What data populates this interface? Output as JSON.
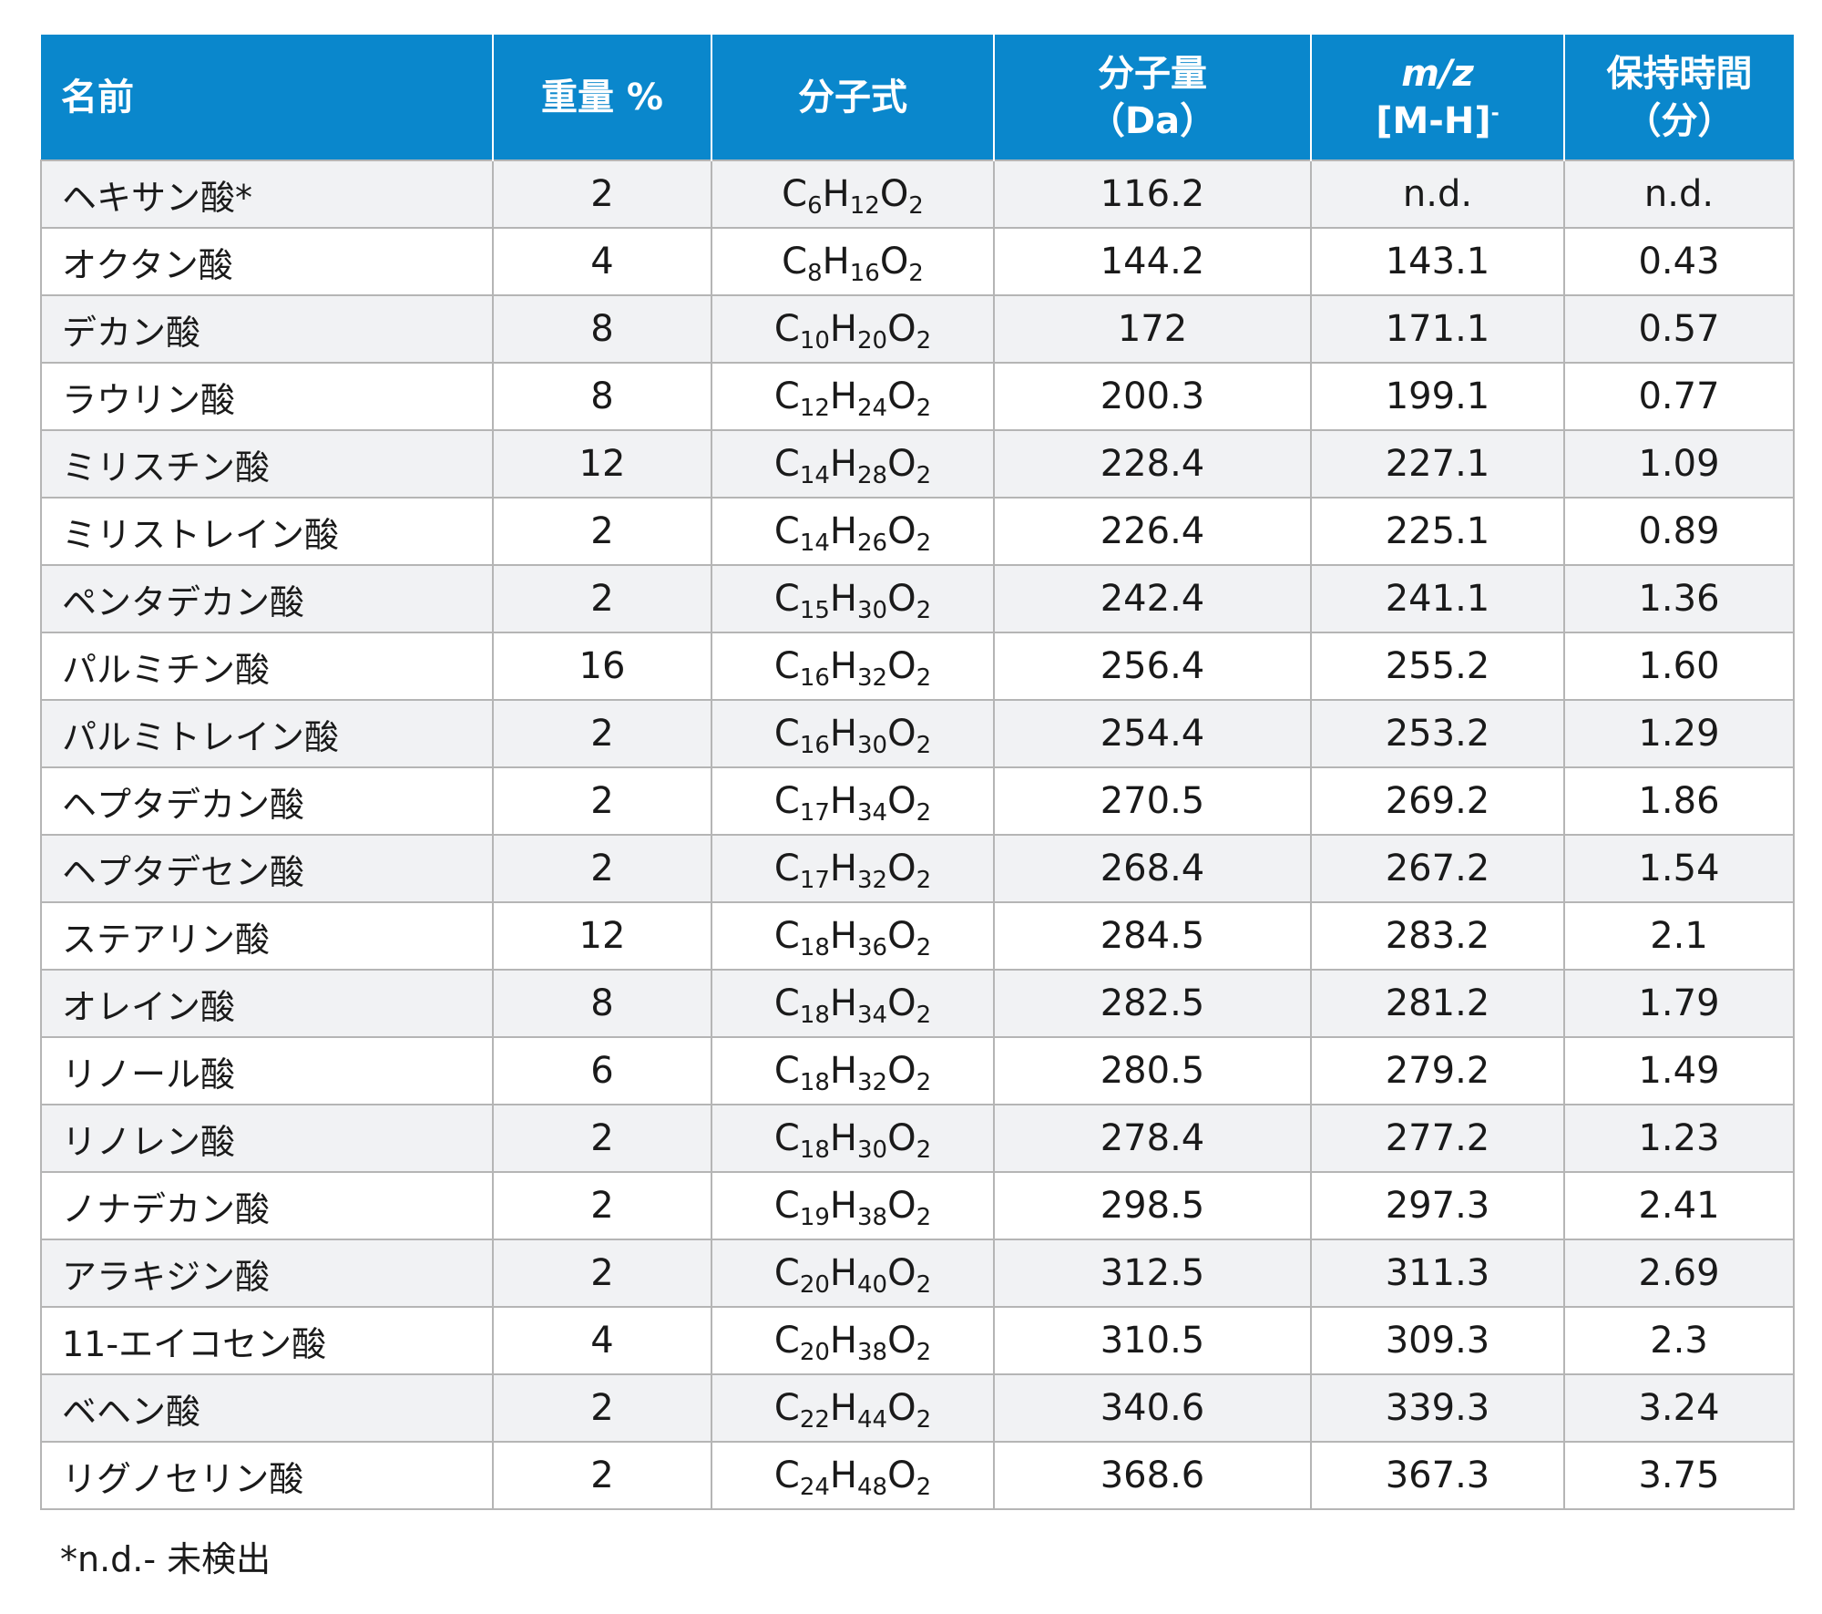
{
  "table": {
    "headers": {
      "name": "名前",
      "weight": "重量 %",
      "formula": "分子式",
      "mw_line1": "分子量",
      "mw_line2": "（Da）",
      "mz_line1": "m/z",
      "mz_line2": "[M-H]",
      "mz_sup": "-",
      "rt_line1": "保持時間",
      "rt_line2": "（分）"
    },
    "rows": [
      {
        "name": "ヘキサン酸*",
        "weight": "2",
        "formula": [
          {
            "t": "C",
            "s": "6"
          },
          {
            "t": "H",
            "s": "12"
          },
          {
            "t": "O",
            "s": "2"
          }
        ],
        "mw": "116.2",
        "mz": "n.d.",
        "rt": "n.d."
      },
      {
        "name": "オクタン酸",
        "weight": "4",
        "formula": [
          {
            "t": "C",
            "s": "8"
          },
          {
            "t": "H",
            "s": "16"
          },
          {
            "t": "O",
            "s": "2"
          }
        ],
        "mw": "144.2",
        "mz": "143.1",
        "rt": "0.43"
      },
      {
        "name": "デカン酸",
        "weight": "8",
        "formula": [
          {
            "t": "C",
            "s": "10"
          },
          {
            "t": "H",
            "s": "20"
          },
          {
            "t": "O",
            "s": "2"
          }
        ],
        "mw": "172",
        "mz": "171.1",
        "rt": "0.57"
      },
      {
        "name": "ラウリン酸",
        "weight": "8",
        "formula": [
          {
            "t": "C",
            "s": "12"
          },
          {
            "t": "H",
            "s": "24"
          },
          {
            "t": "O",
            "s": "2"
          }
        ],
        "mw": "200.3",
        "mz": "199.1",
        "rt": "0.77"
      },
      {
        "name": "ミリスチン酸",
        "weight": "12",
        "formula": [
          {
            "t": "C",
            "s": "14"
          },
          {
            "t": "H",
            "s": "28"
          },
          {
            "t": "O",
            "s": "2"
          }
        ],
        "mw": "228.4",
        "mz": "227.1",
        "rt": "1.09"
      },
      {
        "name": "ミリストレイン酸",
        "weight": "2",
        "formula": [
          {
            "t": "C",
            "s": "14"
          },
          {
            "t": "H",
            "s": "26"
          },
          {
            "t": "O",
            "s": "2"
          }
        ],
        "mw": "226.4",
        "mz": "225.1",
        "rt": "0.89"
      },
      {
        "name": "ペンタデカン酸",
        "weight": "2",
        "formula": [
          {
            "t": "C",
            "s": "15"
          },
          {
            "t": "H",
            "s": "30"
          },
          {
            "t": "O",
            "s": "2"
          }
        ],
        "mw": "242.4",
        "mz": "241.1",
        "rt": "1.36"
      },
      {
        "name": "パルミチン酸",
        "weight": "16",
        "formula": [
          {
            "t": "C",
            "s": "16"
          },
          {
            "t": "H",
            "s": "32"
          },
          {
            "t": "O",
            "s": "2"
          }
        ],
        "mw": "256.4",
        "mz": "255.2",
        "rt": "1.60"
      },
      {
        "name": "パルミトレイン酸",
        "weight": "2",
        "formula": [
          {
            "t": "C",
            "s": "16"
          },
          {
            "t": "H",
            "s": "30"
          },
          {
            "t": "O",
            "s": "2"
          }
        ],
        "mw": "254.4",
        "mz": "253.2",
        "rt": "1.29"
      },
      {
        "name": "ヘプタデカン酸",
        "weight": "2",
        "formula": [
          {
            "t": "C",
            "s": "17"
          },
          {
            "t": "H",
            "s": "34"
          },
          {
            "t": "O",
            "s": "2"
          }
        ],
        "mw": "270.5",
        "mz": "269.2",
        "rt": "1.86"
      },
      {
        "name": "ヘプタデセン酸",
        "weight": "2",
        "formula": [
          {
            "t": "C",
            "s": "17"
          },
          {
            "t": "H",
            "s": "32"
          },
          {
            "t": "O",
            "s": "2"
          }
        ],
        "mw": "268.4",
        "mz": "267.2",
        "rt": "1.54"
      },
      {
        "name": "ステアリン酸",
        "weight": "12",
        "formula": [
          {
            "t": "C",
            "s": "18"
          },
          {
            "t": "H",
            "s": "36"
          },
          {
            "t": "O",
            "s": "2"
          }
        ],
        "mw": "284.5",
        "mz": "283.2",
        "rt": "2.1"
      },
      {
        "name": "オレイン酸",
        "weight": "8",
        "formula": [
          {
            "t": "C",
            "s": "18"
          },
          {
            "t": "H",
            "s": "34"
          },
          {
            "t": "O",
            "s": "2"
          }
        ],
        "mw": "282.5",
        "mz": "281.2",
        "rt": "1.79"
      },
      {
        "name": "リノール酸",
        "weight": "6",
        "formula": [
          {
            "t": "C",
            "s": "18"
          },
          {
            "t": "H",
            "s": "32"
          },
          {
            "t": "O",
            "s": "2"
          }
        ],
        "mw": "280.5",
        "mz": "279.2",
        "rt": "1.49"
      },
      {
        "name": "リノレン酸",
        "weight": "2",
        "formula": [
          {
            "t": "C",
            "s": "18"
          },
          {
            "t": "H",
            "s": "30"
          },
          {
            "t": "O",
            "s": "2"
          }
        ],
        "mw": "278.4",
        "mz": "277.2",
        "rt": "1.23"
      },
      {
        "name": "ノナデカン酸",
        "weight": "2",
        "formula": [
          {
            "t": "C",
            "s": "19"
          },
          {
            "t": "H",
            "s": "38"
          },
          {
            "t": "O",
            "s": "2"
          }
        ],
        "mw": "298.5",
        "mz": "297.3",
        "rt": "2.41"
      },
      {
        "name": "アラキジン酸",
        "weight": "2",
        "formula": [
          {
            "t": "C",
            "s": "20"
          },
          {
            "t": "H",
            "s": "40"
          },
          {
            "t": "O",
            "s": "2"
          }
        ],
        "mw": "312.5",
        "mz": "311.3",
        "rt": "2.69"
      },
      {
        "name": "11-エイコセン酸",
        "weight": "4",
        "formula": [
          {
            "t": "C",
            "s": "20"
          },
          {
            "t": "H",
            "s": "38"
          },
          {
            "t": "O",
            "s": "2"
          }
        ],
        "mw": "310.5",
        "mz": "309.3",
        "rt": "2.3"
      },
      {
        "name": "ベヘン酸",
        "weight": "2",
        "formula": [
          {
            "t": "C",
            "s": "22"
          },
          {
            "t": "H",
            "s": "44"
          },
          {
            "t": "O",
            "s": "2"
          }
        ],
        "mw": "340.6",
        "mz": "339.3",
        "rt": "3.24"
      },
      {
        "name": "リグノセリン酸",
        "weight": "2",
        "formula": [
          {
            "t": "C",
            "s": "24"
          },
          {
            "t": "H",
            "s": "48"
          },
          {
            "t": "O",
            "s": "2"
          }
        ],
        "mw": "368.6",
        "mz": "367.3",
        "rt": "3.75"
      }
    ]
  },
  "footnote": "*n.d.- 未検出",
  "colors": {
    "header_bg": "#0a87cc",
    "header_text": "#ffffff",
    "row_alt": "#f1f2f4",
    "border": "#b5b5b5"
  }
}
